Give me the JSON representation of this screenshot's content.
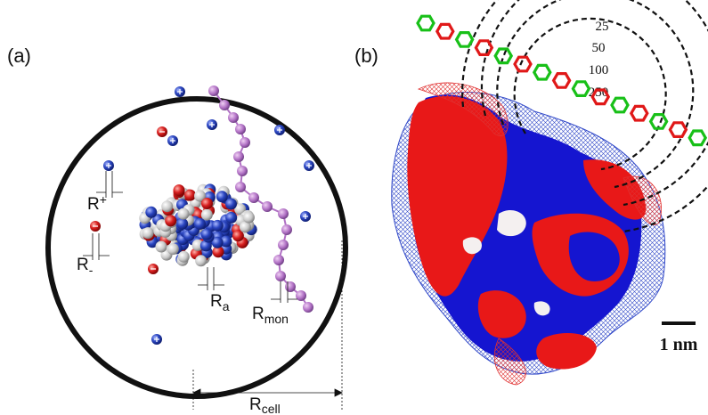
{
  "panel_a": {
    "label": "(a)",
    "r_plus": {
      "symbol": "R",
      "subscript": "+"
    },
    "r_minus": {
      "symbol": "R",
      "subscript": "-"
    },
    "r_a": {
      "symbol": "R",
      "subscript": "a"
    },
    "r_mon": {
      "symbol": "R",
      "subscript": "mon"
    },
    "r_cell": {
      "symbol": "R",
      "subscript": "cell"
    }
  },
  "panel_b": {
    "label": "(b)",
    "contour_labels": [
      "25",
      "50",
      "100",
      "250"
    ],
    "scale_bar": "1 nm"
  }
}
